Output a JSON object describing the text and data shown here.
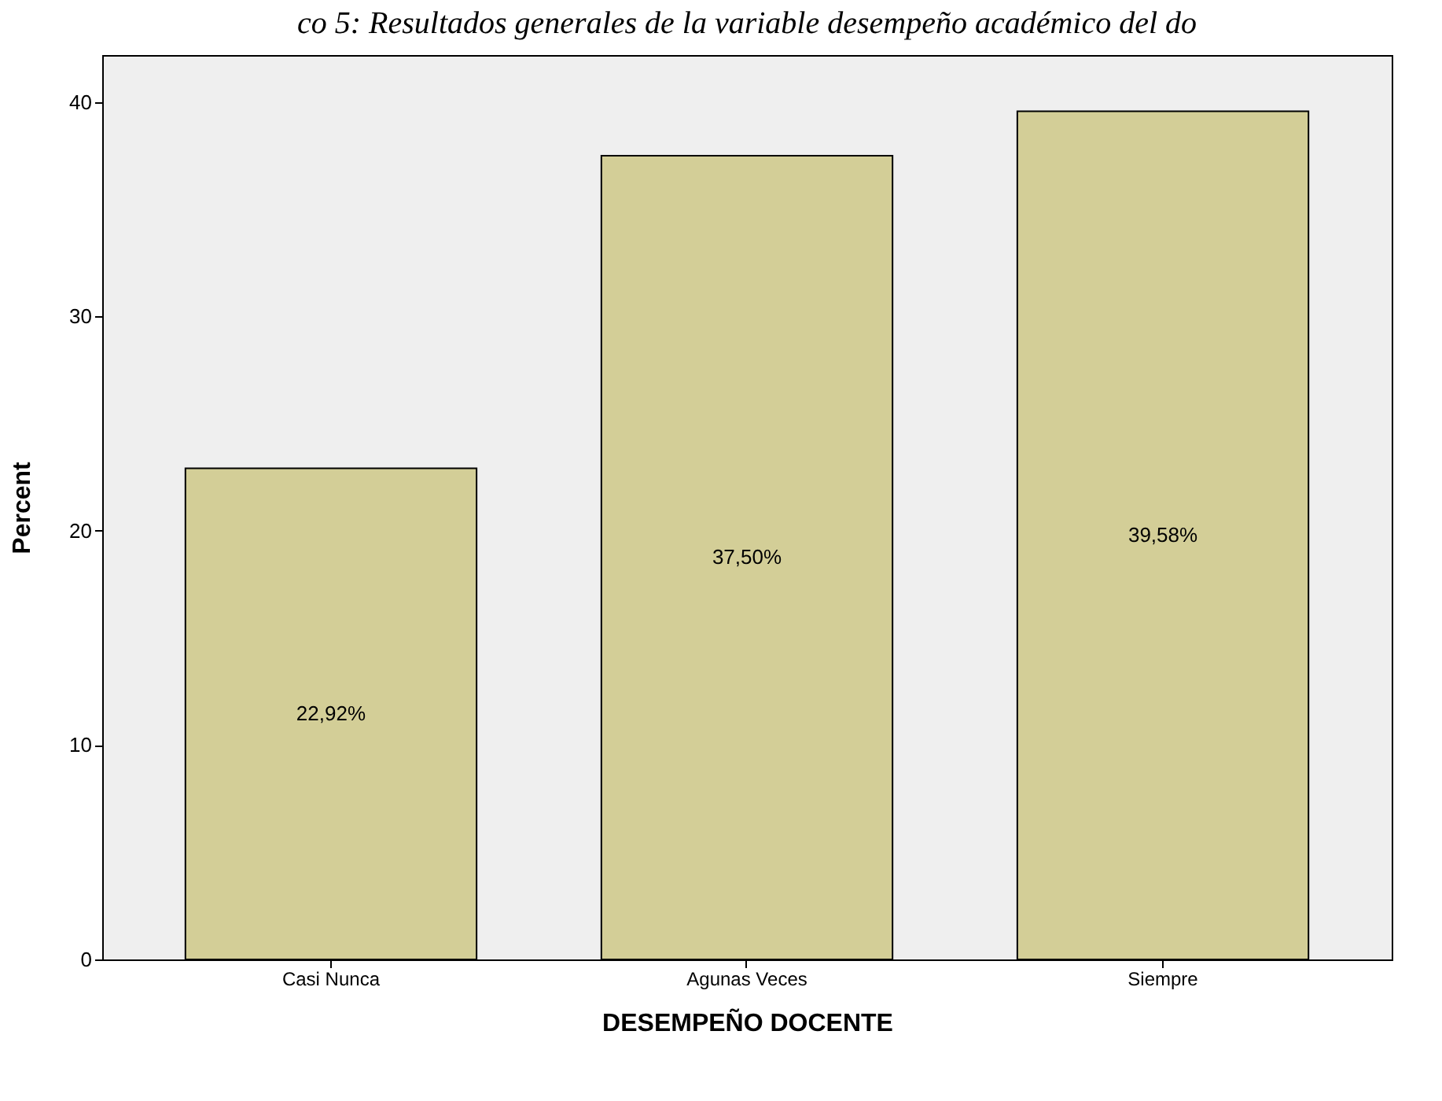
{
  "chart_data": {
    "type": "bar",
    "title": "co 5: Resultados generales de la variable desempeño académico del do",
    "xlabel": "DESEMPEÑO DOCENTE",
    "ylabel": "Percent",
    "categories": [
      "Casi Nunca",
      "Agunas Veces",
      "Siempre"
    ],
    "values": [
      22.92,
      37.5,
      39.58
    ],
    "value_labels": [
      "22,92%",
      "37,50%",
      "39,58%"
    ],
    "color": "#d3ce97",
    "ylim": [
      0,
      42.2
    ],
    "yticks": [
      0,
      10,
      20,
      30,
      40
    ],
    "grid": false
  }
}
